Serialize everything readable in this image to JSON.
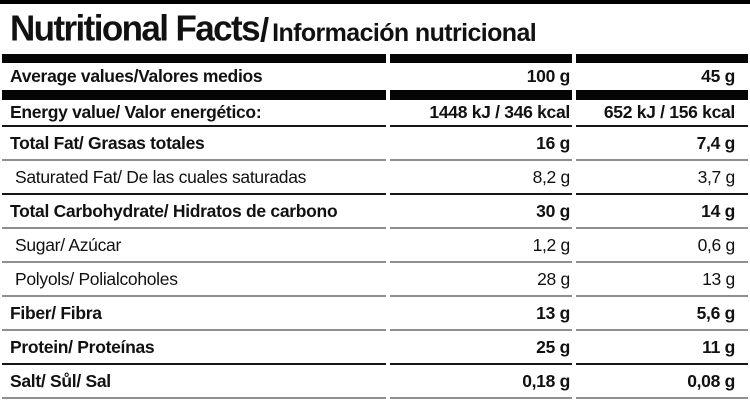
{
  "title": {
    "english": "Nutritional Facts",
    "separator": "/",
    "spanish": "Información nutricional"
  },
  "header": {
    "label": "Average values/Valores medios",
    "per_100g": "100 g",
    "per_45g": "45 g"
  },
  "rows": [
    {
      "label": "Energy value/ Valor energético:",
      "per_100g": "1448 kJ / 346 kcal",
      "per_45g": "652 kJ / 156 kcal",
      "strong": true,
      "section_end": true
    },
    {
      "label": "Total Fat/ Grasas totales",
      "per_100g": "16 g",
      "per_45g": "7,4 g",
      "strong": true,
      "section_end": false
    },
    {
      "label": "Saturated Fat/ De las cuales saturadas",
      "per_100g": "8,2 g",
      "per_45g": "3,7 g",
      "strong": false,
      "section_end": true
    },
    {
      "label": "Total Carbohydrate/ Hidratos de carbono",
      "per_100g": "30 g",
      "per_45g": "14 g",
      "strong": true,
      "section_end": false
    },
    {
      "label": "Sugar/ Azúcar",
      "per_100g": "1,2 g",
      "per_45g": "0,6 g",
      "strong": false,
      "section_end": false
    },
    {
      "label": "Polyols/ Polialcoholes",
      "per_100g": "28 g",
      "per_45g": "13 g",
      "strong": false,
      "section_end": false
    },
    {
      "label": "Fiber/ Fibra",
      "per_100g": "13 g",
      "per_45g": "5,6 g",
      "strong": true,
      "section_end": false
    },
    {
      "label": "Protein/ Proteínas",
      "per_100g": "25 g",
      "per_45g": "11 g",
      "strong": true,
      "section_end": true
    },
    {
      "label": "Salt/ Sůl/ Sal",
      "per_100g": "0,18 g",
      "per_45g": "0,08 g",
      "strong": true,
      "section_end": false
    }
  ],
  "colors": {
    "bar": "#050505",
    "divider_gray": "#8f8f8f",
    "divider_black": "#161616",
    "text": "#111111",
    "background": "#ffffff"
  }
}
